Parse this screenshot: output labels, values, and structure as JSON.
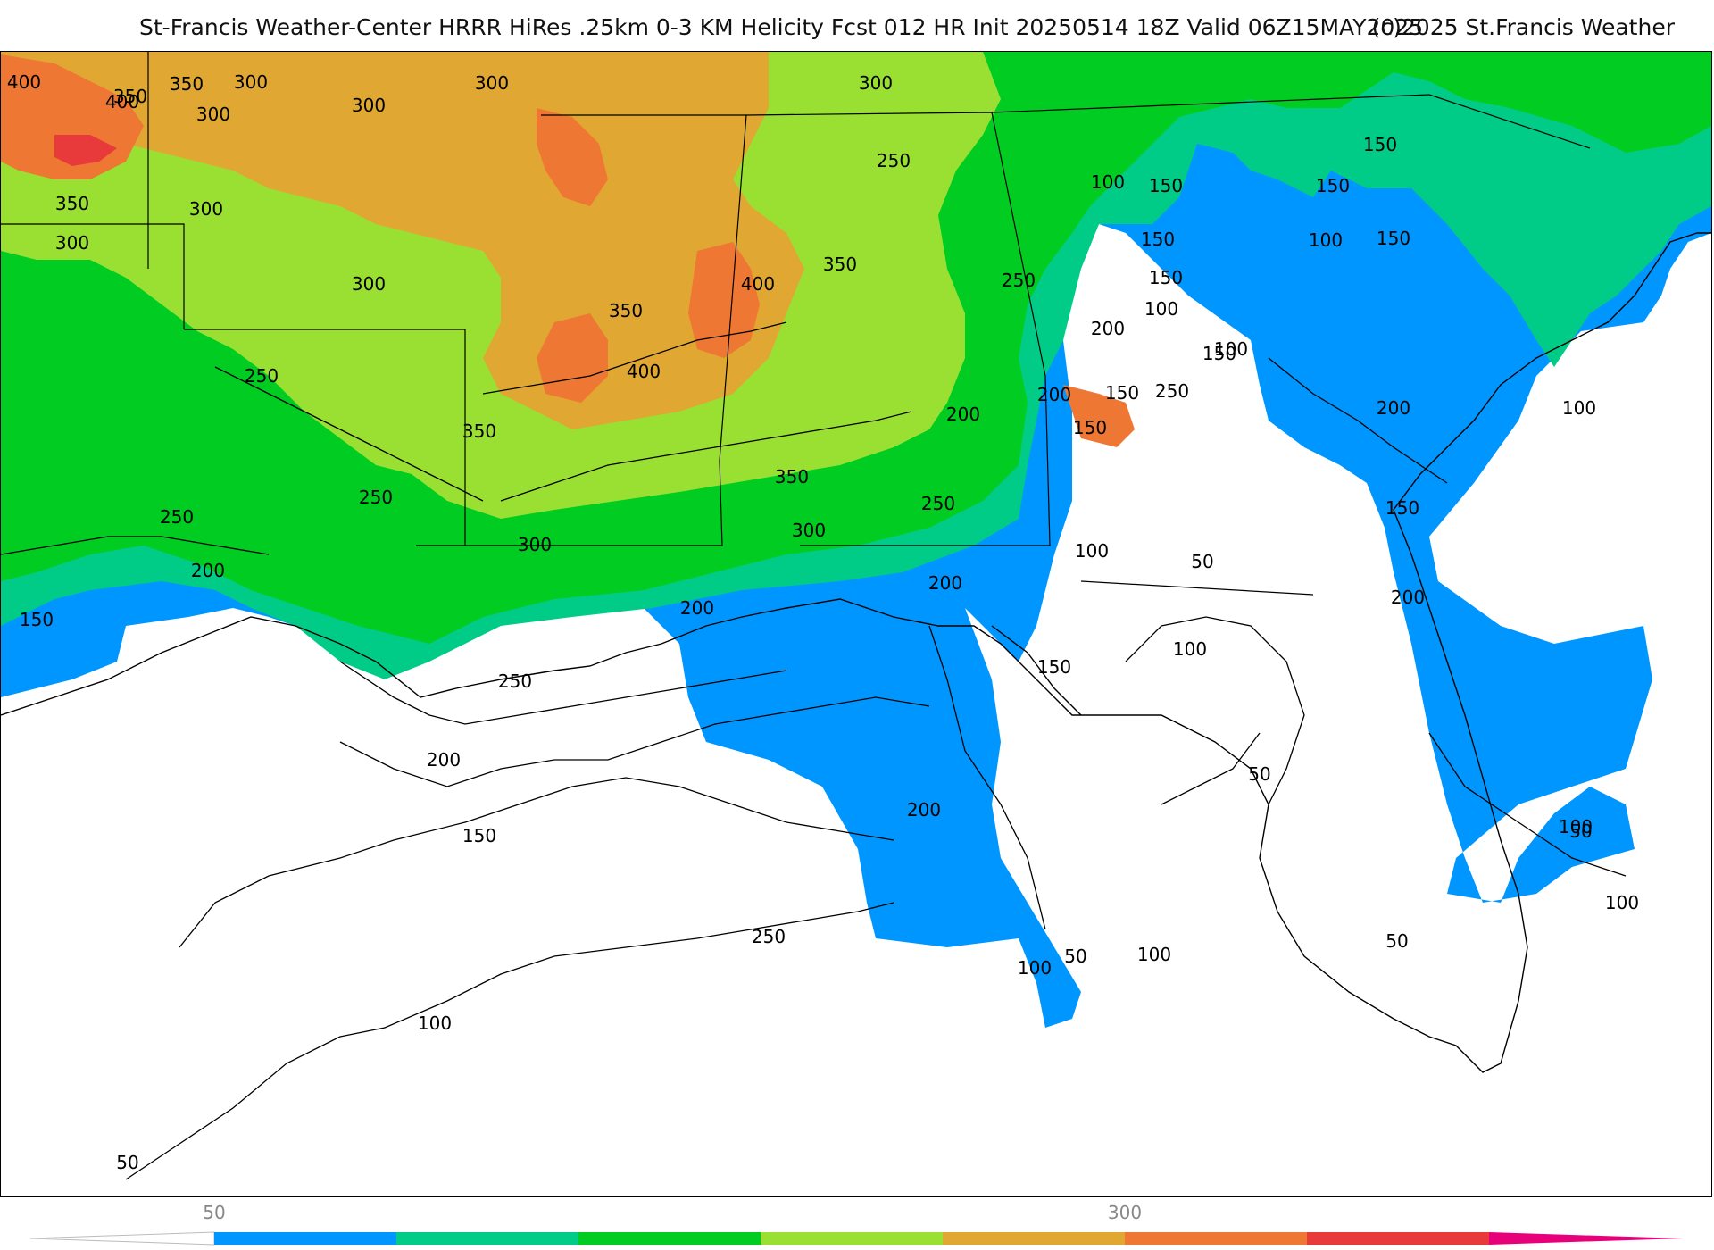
{
  "header": {
    "title": "St-Francis Weather-Center HRRR HiRes .25km 0-3 KM Helicity Fcst 012 HR Init 20250514 18Z  Valid 06Z15MAY2025",
    "copyright": "(c)2025 St.Francis Weather"
  },
  "colors": {
    "c50": "#0096ff",
    "c100": "#00cc88",
    "c150": "#00cc22",
    "c200": "#99e033",
    "c250": "#e0a833",
    "c300": "#ee7733",
    "c350": "#e83a3a",
    "c400": "#e8007a",
    "border": "#000000",
    "county": "#b5b5b5"
  },
  "colorbar": {
    "ticks": [
      {
        "label": "50",
        "value": 50
      },
      {
        "label": "300",
        "value": 300
      }
    ],
    "bins": [
      50,
      100,
      150,
      200,
      250,
      300,
      350,
      400,
      450
    ]
  },
  "contour_labels": [
    {
      "text": "400",
      "name": "contour-label-400"
    },
    {
      "text": "350",
      "name": "contour-label-350"
    },
    {
      "text": "300",
      "name": "contour-label-300"
    },
    {
      "text": "400",
      "name": "contour-label-400"
    },
    {
      "text": "350",
      "name": "contour-label-350"
    },
    {
      "text": "300",
      "name": "contour-label-300"
    },
    {
      "text": "350",
      "name": "contour-label-350"
    },
    {
      "text": "300",
      "name": "contour-label-300"
    },
    {
      "text": "300",
      "name": "contour-label-300"
    },
    {
      "text": "300",
      "name": "contour-label-300"
    },
    {
      "text": "300",
      "name": "contour-label-300"
    },
    {
      "text": "300",
      "name": "contour-label-300"
    },
    {
      "text": "300",
      "name": "contour-label-300"
    },
    {
      "text": "250",
      "name": "contour-label-250"
    },
    {
      "text": "250",
      "name": "contour-label-250"
    },
    {
      "text": "350",
      "name": "contour-label-350"
    },
    {
      "text": "400",
      "name": "contour-label-400"
    },
    {
      "text": "350",
      "name": "contour-label-350"
    },
    {
      "text": "400",
      "name": "contour-label-400"
    },
    {
      "text": "350",
      "name": "contour-label-350"
    },
    {
      "text": "250",
      "name": "contour-label-250"
    },
    {
      "text": "250",
      "name": "contour-label-250"
    },
    {
      "text": "250",
      "name": "contour-label-250"
    },
    {
      "text": "200",
      "name": "contour-label-200"
    },
    {
      "text": "150",
      "name": "contour-label-150"
    },
    {
      "text": "300",
      "name": "contour-label-300"
    },
    {
      "text": "350",
      "name": "contour-label-350"
    },
    {
      "text": "300",
      "name": "contour-label-300"
    },
    {
      "text": "250",
      "name": "contour-label-250"
    },
    {
      "text": "200",
      "name": "contour-label-200"
    },
    {
      "text": "200",
      "name": "contour-label-200"
    },
    {
      "text": "250",
      "name": "contour-label-250"
    },
    {
      "text": "150",
      "name": "contour-label-150"
    },
    {
      "text": "100",
      "name": "contour-label-100"
    },
    {
      "text": "200",
      "name": "contour-label-200"
    },
    {
      "text": "150",
      "name": "contour-label-150"
    },
    {
      "text": "100",
      "name": "contour-label-100"
    },
    {
      "text": "200",
      "name": "contour-label-200"
    },
    {
      "text": "150",
      "name": "contour-label-150"
    },
    {
      "text": "150",
      "name": "contour-label-150"
    },
    {
      "text": "100",
      "name": "contour-label-100"
    },
    {
      "text": "100",
      "name": "contour-label-100"
    },
    {
      "text": "150",
      "name": "contour-label-150"
    },
    {
      "text": "100",
      "name": "contour-label-100"
    },
    {
      "text": "50",
      "name": "contour-label-50"
    },
    {
      "text": "100",
      "name": "contour-label-100"
    },
    {
      "text": "50",
      "name": "contour-label-50"
    },
    {
      "text": "50",
      "name": "contour-label-50"
    },
    {
      "text": "200",
      "name": "contour-label-200"
    },
    {
      "text": "150",
      "name": "contour-label-150"
    },
    {
      "text": "200",
      "name": "contour-label-200"
    },
    {
      "text": "250",
      "name": "contour-label-250"
    },
    {
      "text": "150",
      "name": "contour-label-150"
    },
    {
      "text": "150",
      "name": "contour-label-150"
    },
    {
      "text": "200",
      "name": "contour-label-200"
    },
    {
      "text": "150",
      "name": "contour-label-150"
    },
    {
      "text": "150",
      "name": "contour-label-150"
    },
    {
      "text": "100",
      "name": "contour-label-100"
    },
    {
      "text": "150",
      "name": "contour-label-150"
    },
    {
      "text": "100",
      "name": "contour-label-100"
    },
    {
      "text": "100",
      "name": "contour-label-100"
    },
    {
      "text": "150",
      "name": "contour-label-150"
    },
    {
      "text": "200",
      "name": "contour-label-200"
    },
    {
      "text": "100",
      "name": "contour-label-100"
    },
    {
      "text": "50",
      "name": "contour-label-50"
    },
    {
      "text": "100",
      "name": "contour-label-100"
    },
    {
      "text": "50",
      "name": "contour-label-50"
    },
    {
      "text": "50",
      "name": "contour-label-50"
    },
    {
      "text": "100",
      "name": "contour-label-100"
    },
    {
      "text": "250",
      "name": "contour-label-250"
    },
    {
      "text": "200",
      "name": "contour-label-200"
    }
  ]
}
